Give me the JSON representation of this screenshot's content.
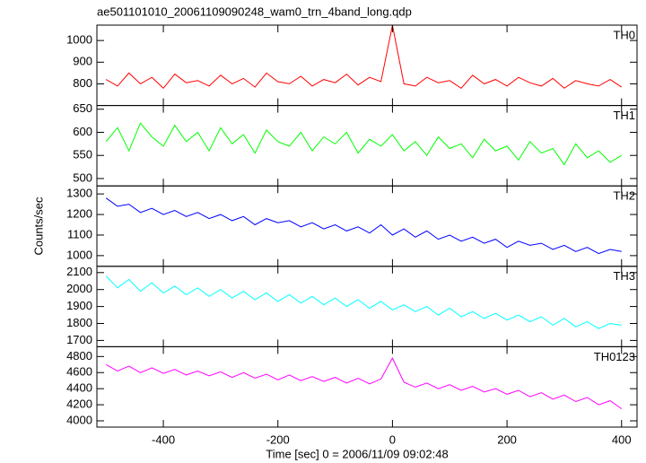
{
  "chart_data": {
    "type": "line",
    "title": "ae501101010_20061109090248_wam0_trn_4band_long.qdp",
    "xlabel": "Time [sec] 0 = 2006/11/09 09:02:48",
    "ylabel": "Counts/sec",
    "xlim": [
      -516,
      427
    ],
    "xticks": [
      -400,
      -200,
      0,
      200,
      400
    ],
    "x": [
      -500,
      -480,
      -460,
      -440,
      -420,
      -400,
      -380,
      -360,
      -340,
      -320,
      -300,
      -280,
      -260,
      -240,
      -220,
      -200,
      -180,
      -160,
      -140,
      -120,
      -100,
      -80,
      -60,
      -40,
      -20,
      0,
      20,
      40,
      60,
      80,
      100,
      120,
      140,
      160,
      180,
      200,
      220,
      240,
      260,
      280,
      300,
      320,
      340,
      360,
      380,
      400
    ],
    "panels": [
      {
        "type": "line",
        "label": "TH0",
        "color": "#ff0000",
        "ylim": [
          700,
          1071
        ],
        "yticks": [
          800,
          900,
          1000
        ],
        "values": [
          820,
          790,
          850,
          800,
          830,
          780,
          845,
          805,
          815,
          790,
          840,
          800,
          825,
          785,
          850,
          810,
          800,
          835,
          790,
          820,
          805,
          845,
          795,
          830,
          810,
          1070,
          800,
          790,
          830,
          805,
          815,
          780,
          840,
          800,
          820,
          790,
          830,
          805,
          790,
          825,
          780,
          815,
          800,
          790,
          820,
          785
        ]
      },
      {
        "type": "line",
        "label": "TH1",
        "color": "#00ff00",
        "ylim": [
          484,
          658
        ],
        "yticks": [
          500,
          550,
          600,
          650
        ],
        "values": [
          580,
          610,
          560,
          620,
          590,
          570,
          615,
          580,
          600,
          560,
          610,
          575,
          595,
          555,
          605,
          580,
          570,
          600,
          560,
          590,
          575,
          600,
          555,
          585,
          570,
          595,
          560,
          580,
          550,
          590,
          565,
          575,
          545,
          585,
          560,
          570,
          540,
          580,
          555,
          565,
          530,
          575,
          545,
          560,
          535,
          550
        ]
      },
      {
        "type": "line",
        "label": "TH2",
        "color": "#0000ff",
        "ylim": [
          948,
          1339
        ],
        "yticks": [
          1000,
          1100,
          1200,
          1300
        ],
        "values": [
          1280,
          1240,
          1250,
          1210,
          1230,
          1200,
          1220,
          1190,
          1210,
          1180,
          1200,
          1170,
          1190,
          1150,
          1180,
          1160,
          1170,
          1140,
          1160,
          1130,
          1150,
          1120,
          1140,
          1110,
          1150,
          1100,
          1130,
          1090,
          1120,
          1080,
          1100,
          1070,
          1090,
          1060,
          1080,
          1040,
          1070,
          1050,
          1060,
          1030,
          1050,
          1020,
          1040,
          1010,
          1030,
          1020
        ]
      },
      {
        "type": "line",
        "label": "TH3",
        "color": "#00ffff",
        "ylim": [
          1663,
          2137
        ],
        "yticks": [
          1700,
          1800,
          1900,
          2000,
          2100
        ],
        "values": [
          2080,
          2010,
          2060,
          1990,
          2040,
          1980,
          2020,
          1970,
          2010,
          1960,
          2000,
          1950,
          1990,
          1940,
          1980,
          1930,
          1970,
          1920,
          1960,
          1910,
          1950,
          1900,
          1940,
          1890,
          1930,
          1880,
          1910,
          1870,
          1900,
          1850,
          1890,
          1840,
          1870,
          1830,
          1860,
          1820,
          1850,
          1810,
          1840,
          1790,
          1830,
          1780,
          1810,
          1770,
          1800,
          1790
        ]
      },
      {
        "type": "line",
        "label": "TH0123",
        "color": "#ff00ff",
        "ylim": [
          3922,
          4922
        ],
        "yticks": [
          4000,
          4200,
          4400,
          4600,
          4800
        ],
        "values": [
          4700,
          4620,
          4680,
          4600,
          4660,
          4590,
          4640,
          4570,
          4620,
          4560,
          4610,
          4540,
          4600,
          4530,
          4580,
          4510,
          4570,
          4500,
          4550,
          4490,
          4540,
          4470,
          4530,
          4460,
          4520,
          4780,
          4480,
          4420,
          4470,
          4400,
          4450,
          4380,
          4430,
          4360,
          4400,
          4330,
          4380,
          4300,
          4350,
          4270,
          4320,
          4240,
          4290,
          4200,
          4250,
          4150
        ]
      }
    ]
  }
}
